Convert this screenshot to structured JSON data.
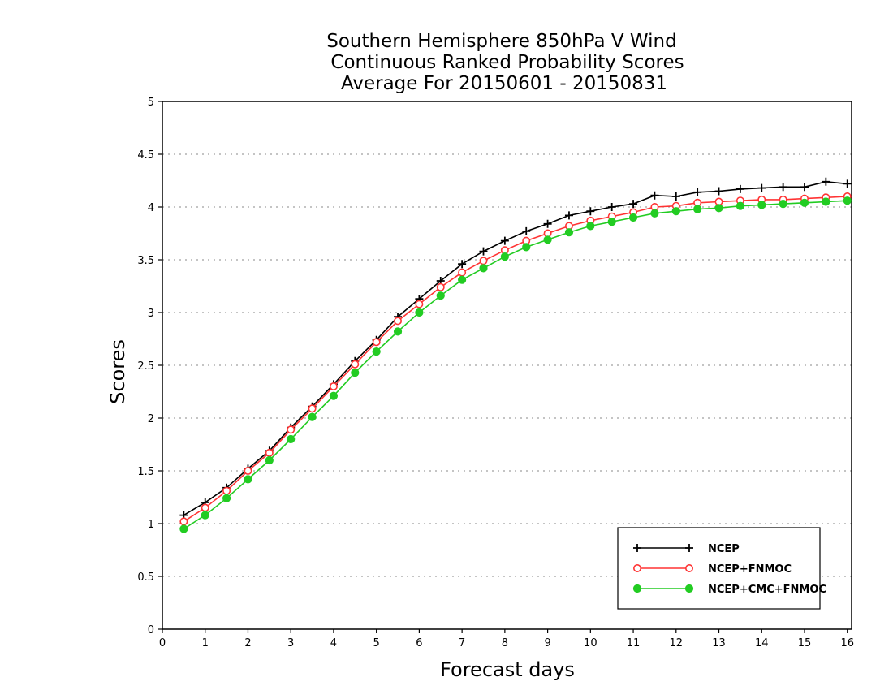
{
  "chart_data": {
    "type": "line",
    "title_lines": [
      "Southern Hemisphere 850hPa V Wind",
      "Continuous Ranked Probability Scores",
      "Average For 20150601 - 20150831"
    ],
    "xlabel": "Forecast days",
    "ylabel": "Scores",
    "xlim": [
      0,
      16.1
    ],
    "ylim": [
      0,
      5
    ],
    "x_ticks": [
      0,
      1,
      2,
      3,
      4,
      5,
      6,
      7,
      8,
      9,
      10,
      11,
      12,
      13,
      14,
      15,
      16
    ],
    "x_tick_labels": [
      "0",
      "1",
      "2",
      "3",
      "4",
      "5",
      "6",
      "7",
      "8",
      "9",
      "10",
      "11",
      "12",
      "13",
      "14",
      "15",
      "16"
    ],
    "y_ticks": [
      0,
      0.5,
      1,
      1.5,
      2,
      2.5,
      3,
      3.5,
      4,
      4.5,
      5
    ],
    "y_tick_labels": [
      "0",
      "0.5",
      "1",
      "1.5",
      "2",
      "2.5",
      "3",
      "3.5",
      "4",
      "4.5",
      "5"
    ],
    "grid": "horizontal dotted",
    "legend_position": "lower-right",
    "x": [
      0.5,
      1,
      1.5,
      2,
      2.5,
      3,
      3.5,
      4,
      4.5,
      5,
      5.5,
      6,
      6.5,
      7,
      7.5,
      8,
      8.5,
      9,
      9.5,
      10,
      10.5,
      11,
      11.5,
      12,
      12.5,
      13,
      13.5,
      14,
      14.5,
      15,
      15.5,
      16
    ],
    "series": [
      {
        "name": "NCEP",
        "color": "#000000",
        "marker": "plus",
        "values": [
          1.08,
          1.2,
          1.34,
          1.52,
          1.69,
          1.91,
          2.11,
          2.32,
          2.54,
          2.74,
          2.96,
          3.13,
          3.3,
          3.46,
          3.58,
          3.68,
          3.77,
          3.84,
          3.92,
          3.96,
          4.0,
          4.03,
          4.11,
          4.1,
          4.14,
          4.15,
          4.17,
          4.18,
          4.19,
          4.19,
          4.24,
          4.22
        ]
      },
      {
        "name": "NCEP+FNMOC",
        "color": "#ff3333",
        "marker": "open-circle",
        "values": [
          1.02,
          1.15,
          1.31,
          1.5,
          1.67,
          1.89,
          2.09,
          2.3,
          2.51,
          2.72,
          2.92,
          3.08,
          3.24,
          3.38,
          3.49,
          3.59,
          3.68,
          3.75,
          3.82,
          3.87,
          3.91,
          3.95,
          4.0,
          4.01,
          4.04,
          4.05,
          4.06,
          4.07,
          4.07,
          4.08,
          4.09,
          4.1
        ]
      },
      {
        "name": "NCEP+CMC+FNMOC",
        "color": "#22cc22",
        "marker": "filled-circle",
        "values": [
          0.95,
          1.08,
          1.24,
          1.42,
          1.6,
          1.8,
          2.01,
          2.21,
          2.43,
          2.63,
          2.82,
          3.0,
          3.16,
          3.31,
          3.42,
          3.53,
          3.62,
          3.69,
          3.76,
          3.82,
          3.86,
          3.9,
          3.94,
          3.96,
          3.98,
          3.99,
          4.01,
          4.02,
          4.03,
          4.04,
          4.05,
          4.06
        ]
      }
    ]
  }
}
